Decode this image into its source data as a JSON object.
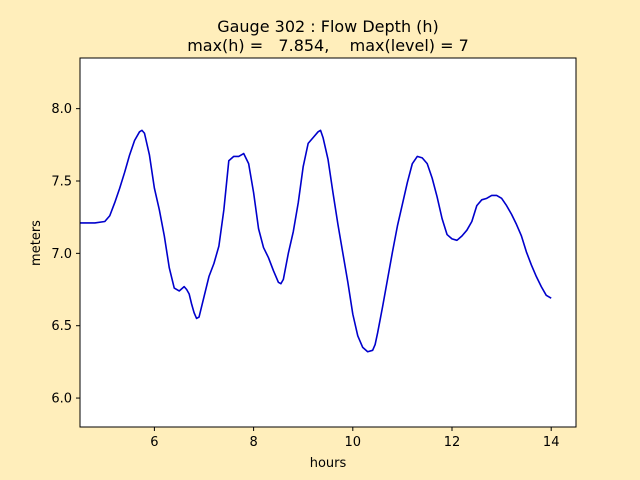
{
  "chart_data": {
    "type": "line",
    "title": "Gauge 302 : Flow Depth (h)",
    "subtitle": "max(h) =   7.854,    max(level) = 7",
    "xlabel": "hours",
    "ylabel": "meters",
    "xlim": [
      4.5,
      14.5
    ],
    "ylim": [
      5.8,
      8.35
    ],
    "xticks": [
      6,
      8,
      10,
      12,
      14
    ],
    "yticks": [
      6.0,
      6.5,
      7.0,
      7.5,
      8.0
    ],
    "xtick_labels": [
      "6",
      "8",
      "10",
      "12",
      "14"
    ],
    "ytick_labels": [
      "6.0",
      "6.5",
      "7.0",
      "7.5",
      "8.0"
    ],
    "grid": false,
    "colors": {
      "line": "#0000cc",
      "background": "#ffeebb",
      "plot_area": "#ffffff"
    },
    "series": [
      {
        "x": [
          4.5,
          4.8,
          5.0,
          5.1,
          5.2,
          5.3,
          5.4,
          5.5,
          5.6,
          5.7,
          5.75,
          5.8,
          5.9,
          6.0,
          6.1,
          6.2,
          6.3,
          6.4,
          6.5,
          6.6,
          6.65,
          6.7,
          6.75,
          6.8,
          6.85,
          6.9,
          7.0,
          7.1,
          7.2,
          7.3,
          7.4,
          7.5,
          7.6,
          7.7,
          7.8,
          7.9,
          8.0,
          8.1,
          8.2,
          8.3,
          8.4,
          8.5,
          8.55,
          8.6,
          8.7,
          8.8,
          8.9,
          9.0,
          9.1,
          9.2,
          9.3,
          9.35,
          9.4,
          9.5,
          9.6,
          9.7,
          9.8,
          9.9,
          10.0,
          10.1,
          10.2,
          10.3,
          10.4,
          10.45,
          10.5,
          10.6,
          10.7,
          10.8,
          10.9,
          11.0,
          11.1,
          11.2,
          11.3,
          11.4,
          11.5,
          11.6,
          11.7,
          11.8,
          11.9,
          12.0,
          12.1,
          12.2,
          12.3,
          12.4,
          12.5,
          12.6,
          12.7,
          12.8,
          12.9,
          13.0,
          13.1,
          13.2,
          13.3,
          13.4,
          13.5,
          13.6,
          13.7,
          13.8,
          13.9,
          14.0
        ],
        "y": [
          7.21,
          7.21,
          7.22,
          7.26,
          7.35,
          7.45,
          7.56,
          7.68,
          7.78,
          7.84,
          7.85,
          7.83,
          7.68,
          7.45,
          7.3,
          7.12,
          6.9,
          6.76,
          6.74,
          6.77,
          6.75,
          6.72,
          6.65,
          6.59,
          6.55,
          6.56,
          6.7,
          6.84,
          6.93,
          7.05,
          7.3,
          7.64,
          7.67,
          7.67,
          7.69,
          7.62,
          7.42,
          7.17,
          7.04,
          6.97,
          6.88,
          6.8,
          6.79,
          6.82,
          7.0,
          7.15,
          7.35,
          7.6,
          7.76,
          7.8,
          7.84,
          7.85,
          7.8,
          7.65,
          7.42,
          7.2,
          7.0,
          6.8,
          6.58,
          6.43,
          6.35,
          6.32,
          6.33,
          6.37,
          6.45,
          6.63,
          6.82,
          7.01,
          7.19,
          7.34,
          7.49,
          7.62,
          7.67,
          7.66,
          7.62,
          7.52,
          7.39,
          7.24,
          7.13,
          7.1,
          7.09,
          7.12,
          7.16,
          7.22,
          7.33,
          7.37,
          7.38,
          7.4,
          7.4,
          7.38,
          7.33,
          7.27,
          7.2,
          7.12,
          7.01,
          6.92,
          6.84,
          6.77,
          6.71,
          6.69
        ]
      }
    ]
  }
}
